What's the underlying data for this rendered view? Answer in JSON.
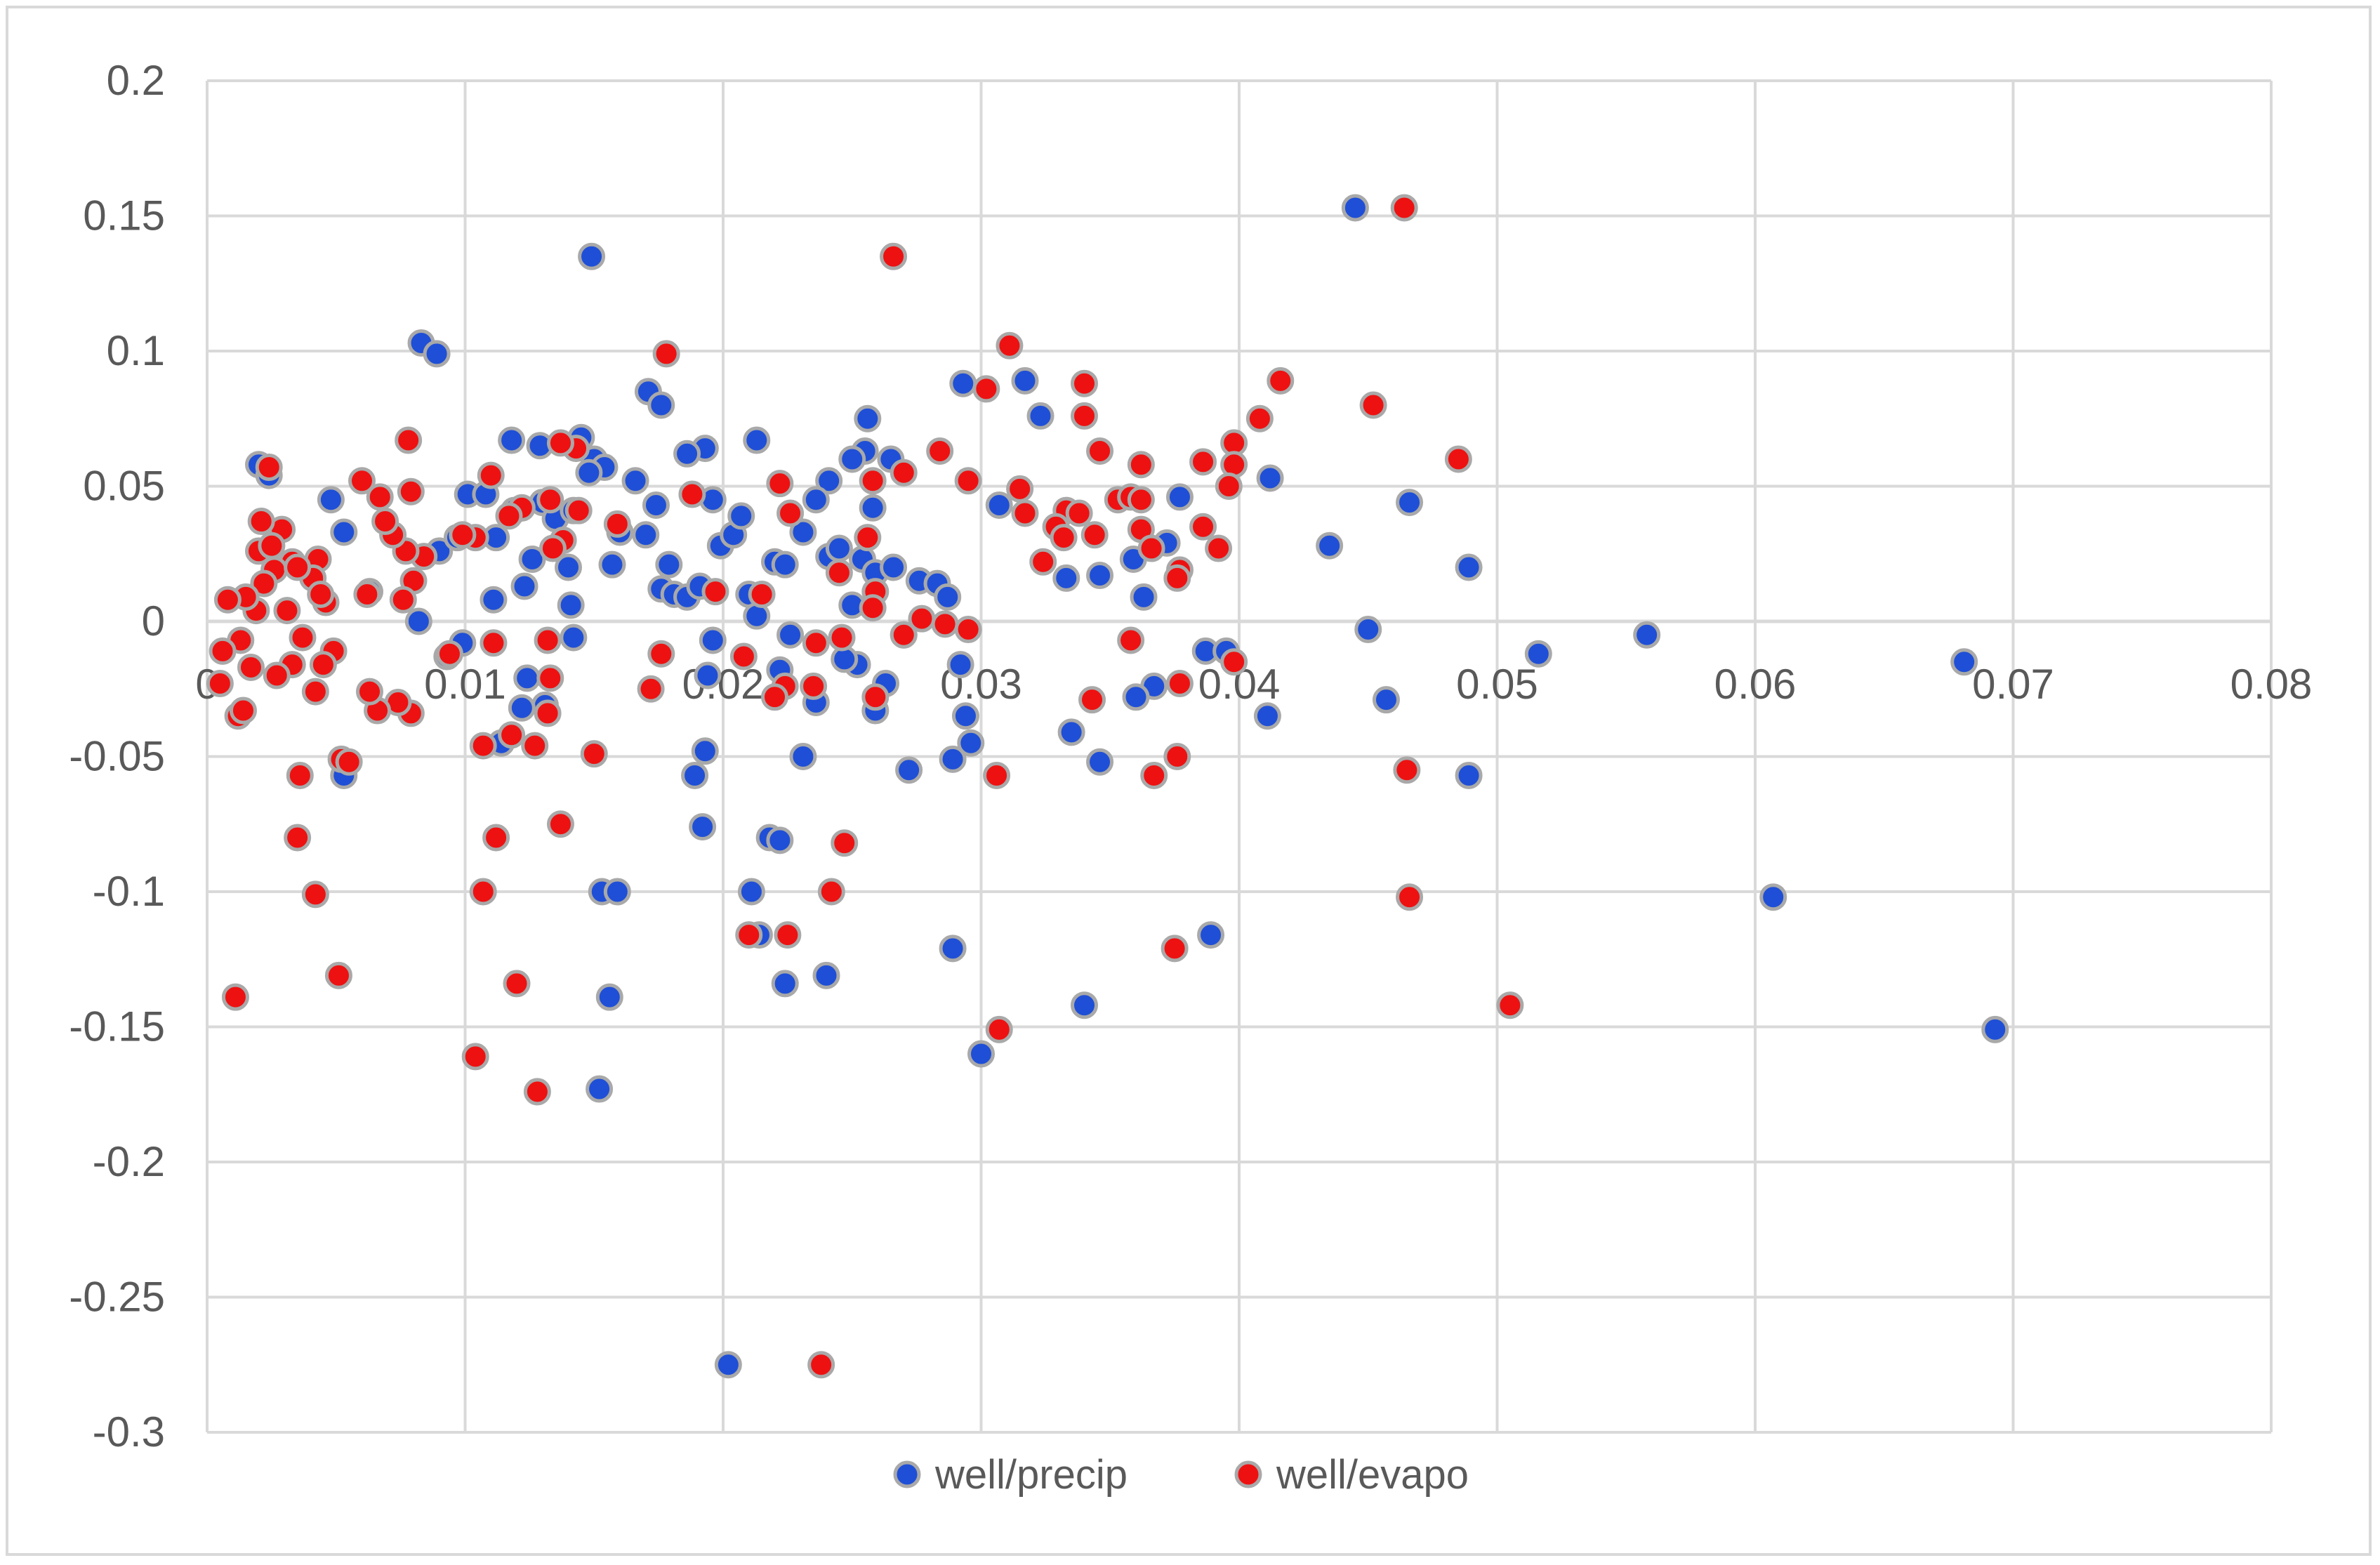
{
  "chart_data": {
    "type": "scatter",
    "title": "",
    "xlabel": "",
    "ylabel": "",
    "xlim": [
      0,
      0.08
    ],
    "ylim": [
      -0.3,
      0.2
    ],
    "x_ticks": [
      0,
      0.01,
      0.02,
      0.03,
      0.04,
      0.05,
      0.06,
      0.07,
      0.08
    ],
    "x_tick_labels": [
      "0",
      "0.01",
      "0.02",
      "0.03",
      "0.04",
      "0.05",
      "0.06",
      "0.07",
      "0.08"
    ],
    "y_ticks": [
      0.2,
      0.15,
      0.1,
      0.05,
      0,
      -0.05,
      -0.1,
      -0.15,
      -0.2,
      -0.25,
      -0.3
    ],
    "y_tick_labels": [
      "0.2",
      "0.15",
      "0.1",
      "0.05",
      "0",
      "-0.05",
      "-0.1",
      "-0.15",
      "-0.2",
      "-0.25",
      "-0.3"
    ],
    "grid": true,
    "legend_position": "bottom",
    "series": [
      {
        "name": "well/precip",
        "color": "#1f4fd6",
        "points": [
          [
            0.0445,
            0.153
          ],
          [
            0.0149,
            0.135
          ],
          [
            0.0083,
            0.103
          ],
          [
            0.0089,
            0.099
          ],
          [
            0.0171,
            0.085
          ],
          [
            0.0176,
            0.08
          ],
          [
            0.0193,
            0.064
          ],
          [
            0.0118,
            0.067
          ],
          [
            0.0129,
            0.065
          ],
          [
            0.0145,
            0.068
          ],
          [
            0.015,
            0.06
          ],
          [
            0.0154,
            0.057
          ],
          [
            0.0186,
            0.062
          ],
          [
            0.0213,
            0.067
          ],
          [
            0.0256,
            0.075
          ],
          [
            0.0255,
            0.063
          ],
          [
            0.025,
            0.06
          ],
          [
            0.0241,
            0.052
          ],
          [
            0.0265,
            0.06
          ],
          [
            0.0293,
            0.088
          ],
          [
            0.0317,
            0.089
          ],
          [
            0.0323,
            0.076
          ],
          [
            0.0307,
            0.043
          ],
          [
            0.0412,
            0.053
          ],
          [
            0.0435,
            0.028
          ],
          [
            0.0466,
            0.044
          ],
          [
            0.0489,
            0.02
          ],
          [
            0.045,
            -0.003
          ],
          [
            0.0516,
            -0.012
          ],
          [
            0.0558,
            -0.005
          ],
          [
            0.0681,
            -0.015
          ],
          [
            0.0457,
            -0.029
          ],
          [
            0.0411,
            -0.035
          ],
          [
            0.0489,
            -0.057
          ],
          [
            0.0607,
            -0.102
          ],
          [
            0.0693,
            -0.151
          ],
          [
            0.002,
            0.058
          ],
          [
            0.0024,
            0.054
          ],
          [
            0.0048,
            0.045
          ],
          [
            0.0053,
            0.033
          ],
          [
            0.0063,
            0.011
          ],
          [
            0.0082,
            0.0
          ],
          [
            0.009,
            0.026
          ],
          [
            0.0097,
            0.031
          ],
          [
            0.0101,
            0.047
          ],
          [
            0.0108,
            0.047
          ],
          [
            0.0112,
            0.031
          ],
          [
            0.0111,
            0.008
          ],
          [
            0.0119,
            0.041
          ],
          [
            0.0123,
            0.013
          ],
          [
            0.0126,
            0.023
          ],
          [
            0.013,
            0.044
          ],
          [
            0.0135,
            0.038
          ],
          [
            0.0142,
            0.041
          ],
          [
            0.014,
            0.02
          ],
          [
            0.0141,
            0.006
          ],
          [
            0.0142,
            -0.006
          ],
          [
            0.0148,
            0.055
          ],
          [
            0.0157,
            0.021
          ],
          [
            0.016,
            0.033
          ],
          [
            0.0166,
            0.052
          ],
          [
            0.017,
            0.032
          ],
          [
            0.0174,
            0.043
          ],
          [
            0.0176,
            0.012
          ],
          [
            0.0179,
            0.021
          ],
          [
            0.0181,
            0.01
          ],
          [
            0.0186,
            0.009
          ],
          [
            0.0191,
            0.013
          ],
          [
            0.0196,
            0.045
          ],
          [
            0.0199,
            0.028
          ],
          [
            0.0204,
            0.032
          ],
          [
            0.0207,
            0.039
          ],
          [
            0.021,
            0.01
          ],
          [
            0.0213,
            0.002
          ],
          [
            0.022,
            0.022
          ],
          [
            0.0224,
            0.021
          ],
          [
            0.0231,
            0.033
          ],
          [
            0.0236,
            0.045
          ],
          [
            0.0241,
            0.024
          ],
          [
            0.0245,
            0.027
          ],
          [
            0.025,
            0.006
          ],
          [
            0.0254,
            0.023
          ],
          [
            0.0258,
            0.042
          ],
          [
            0.0259,
            0.018
          ],
          [
            0.0266,
            0.02
          ],
          [
            0.027,
            -0.005
          ],
          [
            0.0276,
            0.015
          ],
          [
            0.0283,
            0.014
          ],
          [
            0.0287,
            0.009
          ],
          [
            0.0292,
            -0.016
          ],
          [
            0.0294,
            -0.035
          ],
          [
            0.0296,
            -0.045
          ],
          [
            0.0289,
            -0.051
          ],
          [
            0.0333,
            0.016
          ],
          [
            0.0335,
            -0.041
          ],
          [
            0.0346,
            0.017
          ],
          [
            0.0346,
            -0.052
          ],
          [
            0.0359,
            0.023
          ],
          [
            0.0363,
            0.009
          ],
          [
            0.0367,
            -0.024
          ],
          [
            0.0372,
            0.029
          ],
          [
            0.0377,
            0.046
          ],
          [
            0.0387,
            -0.011
          ],
          [
            0.0395,
            -0.011
          ],
          [
            0.036,
            -0.028
          ],
          [
            0.034,
            -0.142
          ],
          [
            0.0389,
            -0.116
          ],
          [
            0.0289,
            -0.121
          ],
          [
            0.03,
            -0.16
          ],
          [
            0.0272,
            -0.055
          ],
          [
            0.0252,
            -0.016
          ],
          [
            0.0259,
            -0.033
          ],
          [
            0.0263,
            -0.023
          ],
          [
            0.0247,
            -0.014
          ],
          [
            0.0236,
            -0.03
          ],
          [
            0.0231,
            -0.05
          ],
          [
            0.0226,
            -0.005
          ],
          [
            0.0222,
            -0.018
          ],
          [
            0.0218,
            -0.08
          ],
          [
            0.0222,
            -0.081
          ],
          [
            0.0211,
            -0.1
          ],
          [
            0.0214,
            -0.116
          ],
          [
            0.0224,
            -0.134
          ],
          [
            0.024,
            -0.131
          ],
          [
            0.0196,
            -0.007
          ],
          [
            0.0194,
            -0.02
          ],
          [
            0.0189,
            -0.057
          ],
          [
            0.0193,
            -0.048
          ],
          [
            0.0192,
            -0.076
          ],
          [
            0.0153,
            -0.1
          ],
          [
            0.0159,
            -0.1
          ],
          [
            0.0156,
            -0.139
          ],
          [
            0.0152,
            -0.173
          ],
          [
            0.0202,
            -0.275
          ],
          [
            0.0131,
            -0.031
          ],
          [
            0.0122,
            -0.032
          ],
          [
            0.0124,
            -0.021
          ],
          [
            0.0114,
            -0.045
          ],
          [
            0.0093,
            -0.013
          ],
          [
            0.0099,
            -0.008
          ],
          [
            0.0053,
            -0.057
          ]
        ]
      },
      {
        "name": "well/evapo",
        "color": "#ee1111",
        "points": [
          [
            0.0464,
            0.153
          ],
          [
            0.0266,
            0.135
          ],
          [
            0.0178,
            0.099
          ],
          [
            0.0311,
            0.102
          ],
          [
            0.034,
            0.088
          ],
          [
            0.0416,
            0.089
          ],
          [
            0.0302,
            0.086
          ],
          [
            0.0452,
            0.08
          ],
          [
            0.034,
            0.076
          ],
          [
            0.0408,
            0.075
          ],
          [
            0.0398,
            0.066
          ],
          [
            0.0346,
            0.063
          ],
          [
            0.0485,
            0.06
          ],
          [
            0.0398,
            0.058
          ],
          [
            0.0386,
            0.059
          ],
          [
            0.0362,
            0.058
          ],
          [
            0.0315,
            0.049
          ],
          [
            0.0284,
            0.063
          ],
          [
            0.027,
            0.055
          ],
          [
            0.0295,
            0.052
          ],
          [
            0.0396,
            0.05
          ],
          [
            0.0353,
            0.045
          ],
          [
            0.0358,
            0.046
          ],
          [
            0.0362,
            0.045
          ],
          [
            0.0317,
            0.04
          ],
          [
            0.0333,
            0.041
          ],
          [
            0.0338,
            0.04
          ],
          [
            0.0329,
            0.035
          ],
          [
            0.0332,
            0.031
          ],
          [
            0.0344,
            0.032
          ],
          [
            0.0362,
            0.034
          ],
          [
            0.0366,
            0.027
          ],
          [
            0.0386,
            0.035
          ],
          [
            0.0392,
            0.027
          ],
          [
            0.0324,
            0.022
          ],
          [
            0.0377,
            0.019
          ],
          [
            0.0376,
            0.016
          ],
          [
            0.0358,
            -0.007
          ],
          [
            0.0377,
            -0.023
          ],
          [
            0.0398,
            -0.015
          ],
          [
            0.0343,
            -0.029
          ],
          [
            0.0376,
            -0.05
          ],
          [
            0.0367,
            -0.057
          ],
          [
            0.0375,
            -0.121
          ],
          [
            0.0465,
            -0.055
          ],
          [
            0.0466,
            -0.102
          ],
          [
            0.0505,
            -0.142
          ],
          [
            0.0306,
            -0.057
          ],
          [
            0.0307,
            -0.151
          ],
          [
            0.027,
            -0.005
          ],
          [
            0.0277,
            0.001
          ],
          [
            0.0286,
            -0.001
          ],
          [
            0.0295,
            -0.003
          ],
          [
            0.0258,
            0.052
          ],
          [
            0.0256,
            0.031
          ],
          [
            0.0259,
            0.011
          ],
          [
            0.0258,
            0.005
          ],
          [
            0.0259,
            -0.028
          ],
          [
            0.0245,
            0.018
          ],
          [
            0.0246,
            -0.006
          ],
          [
            0.0236,
            -0.008
          ],
          [
            0.0235,
            -0.024
          ],
          [
            0.0226,
            0.04
          ],
          [
            0.0222,
            0.051
          ],
          [
            0.0215,
            0.01
          ],
          [
            0.0224,
            -0.024
          ],
          [
            0.022,
            -0.028
          ],
          [
            0.0208,
            -0.013
          ],
          [
            0.0197,
            0.011
          ],
          [
            0.0247,
            -0.082
          ],
          [
            0.0242,
            -0.1
          ],
          [
            0.0225,
            -0.116
          ],
          [
            0.021,
            -0.116
          ],
          [
            0.0238,
            -0.275
          ],
          [
            0.0188,
            0.047
          ],
          [
            0.0176,
            -0.012
          ],
          [
            0.0172,
            -0.025
          ],
          [
            0.0159,
            0.036
          ],
          [
            0.015,
            -0.049
          ],
          [
            0.0143,
            0.064
          ],
          [
            0.0137,
            0.066
          ],
          [
            0.0144,
            0.041
          ],
          [
            0.0138,
            0.03
          ],
          [
            0.0134,
            0.027
          ],
          [
            0.0133,
            0.045
          ],
          [
            0.0132,
            -0.007
          ],
          [
            0.0133,
            -0.021
          ],
          [
            0.0132,
            -0.034
          ],
          [
            0.0137,
            -0.075
          ],
          [
            0.0128,
            -0.174
          ],
          [
            0.0122,
            0.042
          ],
          [
            0.0117,
            0.039
          ],
          [
            0.0127,
            -0.046
          ],
          [
            0.0118,
            -0.042
          ],
          [
            0.0111,
            -0.008
          ],
          [
            0.0112,
            -0.08
          ],
          [
            0.0107,
            -0.046
          ],
          [
            0.0107,
            -0.1
          ],
          [
            0.0104,
            -0.161
          ],
          [
            0.012,
            -0.134
          ],
          [
            0.011,
            0.054
          ],
          [
            0.0104,
            0.031
          ],
          [
            0.0099,
            0.032
          ],
          [
            0.0094,
            -0.012
          ],
          [
            0.0084,
            0.024
          ],
          [
            0.008,
            0.015
          ],
          [
            0.0079,
            0.048
          ],
          [
            0.0078,
            0.067
          ],
          [
            0.0077,
            0.026
          ],
          [
            0.0072,
            0.032
          ],
          [
            0.0069,
            0.037
          ],
          [
            0.0067,
            0.046
          ],
          [
            0.006,
            0.052
          ],
          [
            0.0076,
            0.008
          ],
          [
            0.0079,
            -0.034
          ],
          [
            0.0074,
            -0.03
          ],
          [
            0.0066,
            -0.033
          ],
          [
            0.0063,
            -0.026
          ],
          [
            0.0062,
            0.01
          ],
          [
            0.0052,
            -0.051
          ],
          [
            0.0055,
            -0.052
          ],
          [
            0.0049,
            -0.011
          ],
          [
            0.0045,
            -0.016
          ],
          [
            0.0043,
            0.023
          ],
          [
            0.0046,
            0.007
          ],
          [
            0.0041,
            0.016
          ],
          [
            0.0044,
            0.01
          ],
          [
            0.0042,
            -0.026
          ],
          [
            0.0037,
            -0.006
          ],
          [
            0.0033,
            0.022
          ],
          [
            0.0033,
            -0.016
          ],
          [
            0.0036,
            -0.057
          ],
          [
            0.0035,
            -0.08
          ],
          [
            0.0042,
            -0.101
          ],
          [
            0.0051,
            -0.131
          ],
          [
            0.0029,
            0.034
          ],
          [
            0.0026,
            0.019
          ],
          [
            0.0024,
            0.057
          ],
          [
            0.0022,
            0.014
          ],
          [
            0.0027,
            -0.02
          ],
          [
            0.0021,
            0.037
          ],
          [
            0.002,
            0.026
          ],
          [
            0.0019,
            0.004
          ],
          [
            0.0017,
            -0.017
          ],
          [
            0.0015,
            0.009
          ],
          [
            0.0013,
            -0.007
          ],
          [
            0.0012,
            -0.035
          ],
          [
            0.0014,
            -0.033
          ],
          [
            0.0011,
            -0.139
          ],
          [
            0.0008,
            0.008
          ],
          [
            0.0006,
            -0.011
          ],
          [
            0.0005,
            -0.023
          ],
          [
            0.0031,
            0.004
          ],
          [
            0.0035,
            0.02
          ],
          [
            0.0025,
            0.028
          ]
        ]
      }
    ]
  }
}
